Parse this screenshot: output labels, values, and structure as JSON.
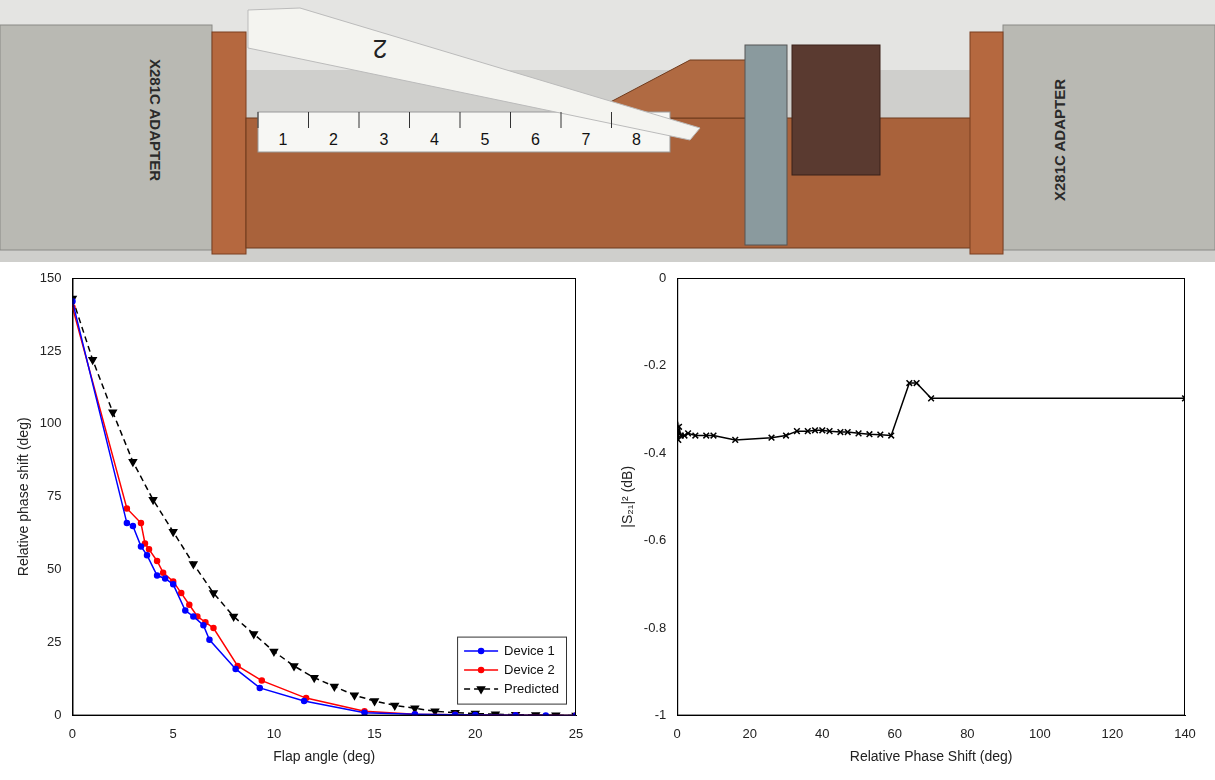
{
  "photo": {
    "adapter_label": "X281C ADAPTER",
    "flap_label": "2",
    "ruler_labels": [
      1,
      2,
      3,
      4,
      5,
      6,
      7,
      8
    ]
  },
  "chart_data": [
    {
      "type": "line",
      "x_label": "Flap angle (deg)",
      "y_label": "Relative phase shift (deg)",
      "xlim": [
        0,
        25
      ],
      "xticks": [
        0,
        5,
        10,
        15,
        20,
        25
      ],
      "ylim": [
        0,
        150
      ],
      "yticks": [
        0,
        25,
        50,
        75,
        100,
        125,
        150
      ],
      "grid": false,
      "legend": "lower right",
      "series": [
        {
          "name": "Device 1",
          "color": "#0000ff",
          "marker": "circle",
          "line_style": "solid",
          "x": [
            0,
            2.7,
            3.0,
            3.4,
            3.7,
            4.2,
            4.6,
            5.0,
            5.6,
            6.0,
            6.5,
            6.8,
            8.1,
            9.3,
            11.5,
            14.5,
            17,
            19,
            20,
            22,
            23.5,
            25
          ],
          "values": [
            142,
            66,
            65,
            58,
            55,
            48,
            47,
            45,
            36,
            34,
            31,
            26,
            16,
            9.5,
            5,
            1,
            0.5,
            0.3,
            0.2,
            0.1,
            0,
            0
          ]
        },
        {
          "name": "Device 2",
          "color": "#ff0000",
          "marker": "circle",
          "line_style": "solid",
          "x": [
            0,
            2.7,
            3.4,
            3.6,
            3.8,
            4.2,
            4.5,
            5.0,
            5.4,
            5.8,
            6.2,
            6.6,
            7.0,
            8.2,
            9.4,
            11.6,
            14.5,
            17,
            19,
            22,
            25
          ],
          "values": [
            140,
            71,
            66,
            59,
            57,
            53,
            49,
            46,
            42,
            38,
            34,
            32,
            30,
            17,
            12,
            6,
            1.5,
            0.5,
            0.3,
            0.1,
            0
          ]
        },
        {
          "name": "Predicted",
          "color": "#000000",
          "marker": "triangle_down",
          "line_style": "dashed",
          "x": [
            0,
            1,
            2,
            3,
            4,
            5,
            6,
            7,
            8,
            9,
            10,
            11,
            12,
            13,
            14,
            15,
            16,
            17,
            18,
            19,
            20,
            21,
            22,
            23,
            24,
            25
          ],
          "values": [
            143,
            122,
            104,
            87,
            74,
            63,
            52,
            42,
            34,
            28,
            22,
            17,
            13,
            10,
            7,
            5,
            3.5,
            2.5,
            1.5,
            1,
            0.7,
            0.5,
            0.3,
            0.2,
            0.1,
            0
          ]
        }
      ]
    },
    {
      "type": "line",
      "x_label": "Relative Phase Shift (deg)",
      "y_label": "|S₂₁|² (dB)",
      "xlim": [
        0,
        140
      ],
      "xticks": [
        0,
        20,
        40,
        60,
        80,
        100,
        120,
        140
      ],
      "ylim": [
        -1,
        0
      ],
      "yticks": [
        -1,
        -0.8,
        -0.6,
        -0.4,
        -0.2,
        0
      ],
      "grid": false,
      "series": [
        {
          "color": "#000000",
          "marker": "x",
          "line_style": "solid",
          "x": [
            0,
            0.3,
            0.5,
            1,
            2,
            3,
            5,
            8,
            10,
            16,
            26,
            30,
            33,
            36,
            38,
            40,
            42,
            45,
            47,
            50,
            53,
            56,
            59,
            64,
            66,
            70,
            140
          ],
          "values": [
            -0.35,
            -0.37,
            -0.34,
            -0.36,
            -0.36,
            -0.355,
            -0.36,
            -0.36,
            -0.36,
            -0.37,
            -0.365,
            -0.36,
            -0.35,
            -0.35,
            -0.348,
            -0.348,
            -0.35,
            -0.352,
            -0.352,
            -0.355,
            -0.357,
            -0.358,
            -0.36,
            -0.24,
            -0.24,
            -0.275,
            -0.275
          ]
        }
      ]
    }
  ]
}
